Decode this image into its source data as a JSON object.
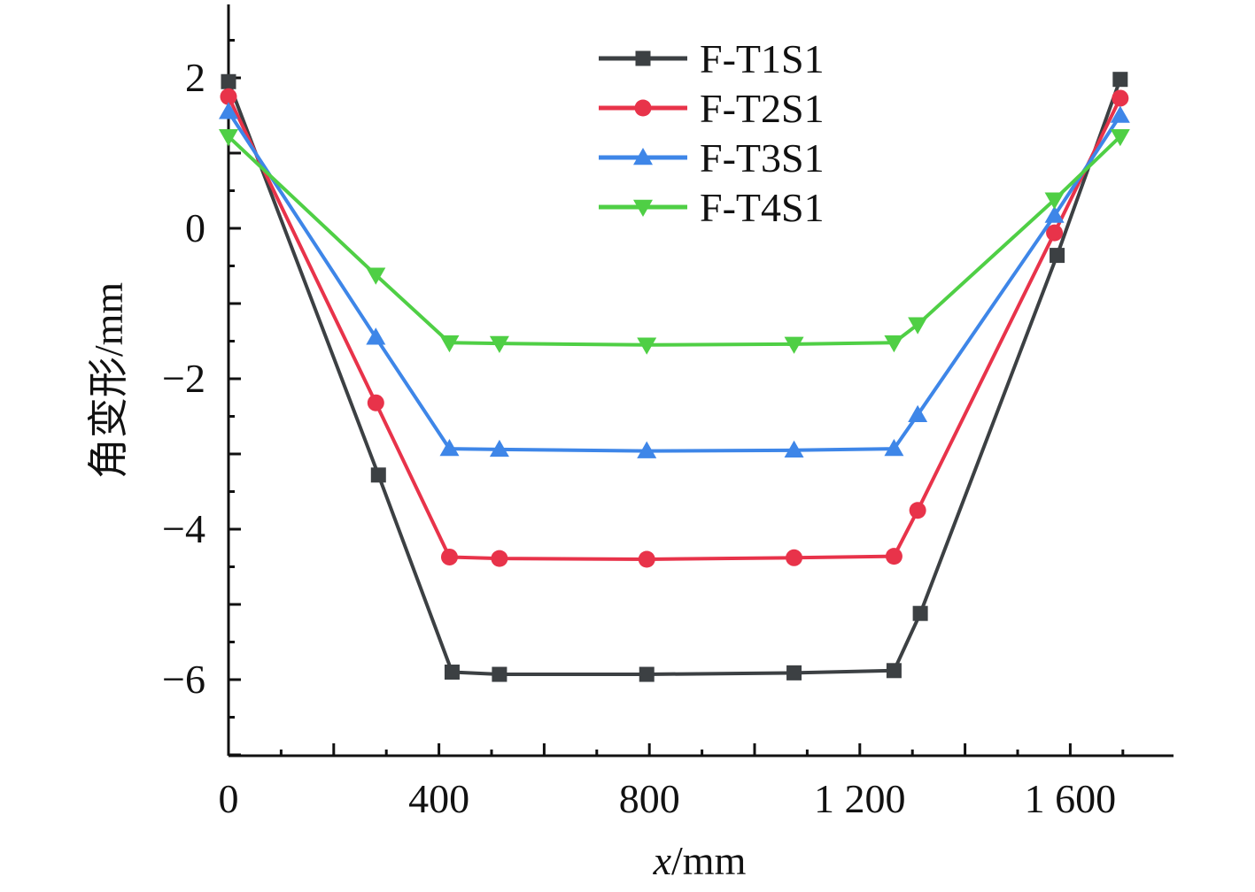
{
  "chart_data": {
    "type": "line",
    "title": "",
    "xlabel_var": "x",
    "xlabel_unit": "/mm",
    "ylabel": "角变形/mm",
    "xlim": [
      0,
      1800
    ],
    "ylim": [
      -7,
      3
    ],
    "x_ticks": [
      0,
      400,
      800,
      1200,
      1600
    ],
    "x_tick_labels": [
      "0",
      "400",
      "800",
      "1 200",
      "1 600"
    ],
    "y_ticks": [
      2,
      0,
      -2,
      -4,
      -6
    ],
    "y_tick_labels": [
      "2",
      "0",
      "−2",
      "−4",
      "−6"
    ],
    "legend_position": "top-center",
    "series": [
      {
        "name": "F-T1S1",
        "color": "#3c4043",
        "marker": "square",
        "points": [
          [
            0,
            1.95
          ],
          [
            285,
            -3.28
          ],
          [
            425,
            -5.9
          ],
          [
            515,
            -5.93
          ],
          [
            795,
            -5.93
          ],
          [
            1075,
            -5.91
          ],
          [
            1265,
            -5.88
          ],
          [
            1315,
            -5.12
          ],
          [
            1575,
            -0.36
          ],
          [
            1695,
            1.98
          ]
        ]
      },
      {
        "name": "F-T2S1",
        "color": "#e8334a",
        "marker": "circle",
        "points": [
          [
            0,
            1.75
          ],
          [
            280,
            -2.32
          ],
          [
            420,
            -4.37
          ],
          [
            515,
            -4.39
          ],
          [
            795,
            -4.4
          ],
          [
            1075,
            -4.38
          ],
          [
            1265,
            -4.36
          ],
          [
            1310,
            -3.75
          ],
          [
            1570,
            -0.06
          ],
          [
            1695,
            1.73
          ]
        ]
      },
      {
        "name": "F-T3S1",
        "color": "#3e86e8",
        "marker": "triangle-up",
        "points": [
          [
            0,
            1.55
          ],
          [
            280,
            -1.45
          ],
          [
            420,
            -2.93
          ],
          [
            515,
            -2.94
          ],
          [
            795,
            -2.96
          ],
          [
            1075,
            -2.95
          ],
          [
            1265,
            -2.93
          ],
          [
            1310,
            -2.48
          ],
          [
            1570,
            0.17
          ],
          [
            1695,
            1.5
          ]
        ]
      },
      {
        "name": "F-T4S1",
        "color": "#4fcf45",
        "marker": "triangle-down",
        "points": [
          [
            0,
            1.22
          ],
          [
            280,
            -0.62
          ],
          [
            420,
            -1.52
          ],
          [
            515,
            -1.53
          ],
          [
            795,
            -1.55
          ],
          [
            1075,
            -1.54
          ],
          [
            1265,
            -1.52
          ],
          [
            1310,
            -1.28
          ],
          [
            1570,
            0.38
          ],
          [
            1695,
            1.22
          ]
        ]
      }
    ]
  }
}
